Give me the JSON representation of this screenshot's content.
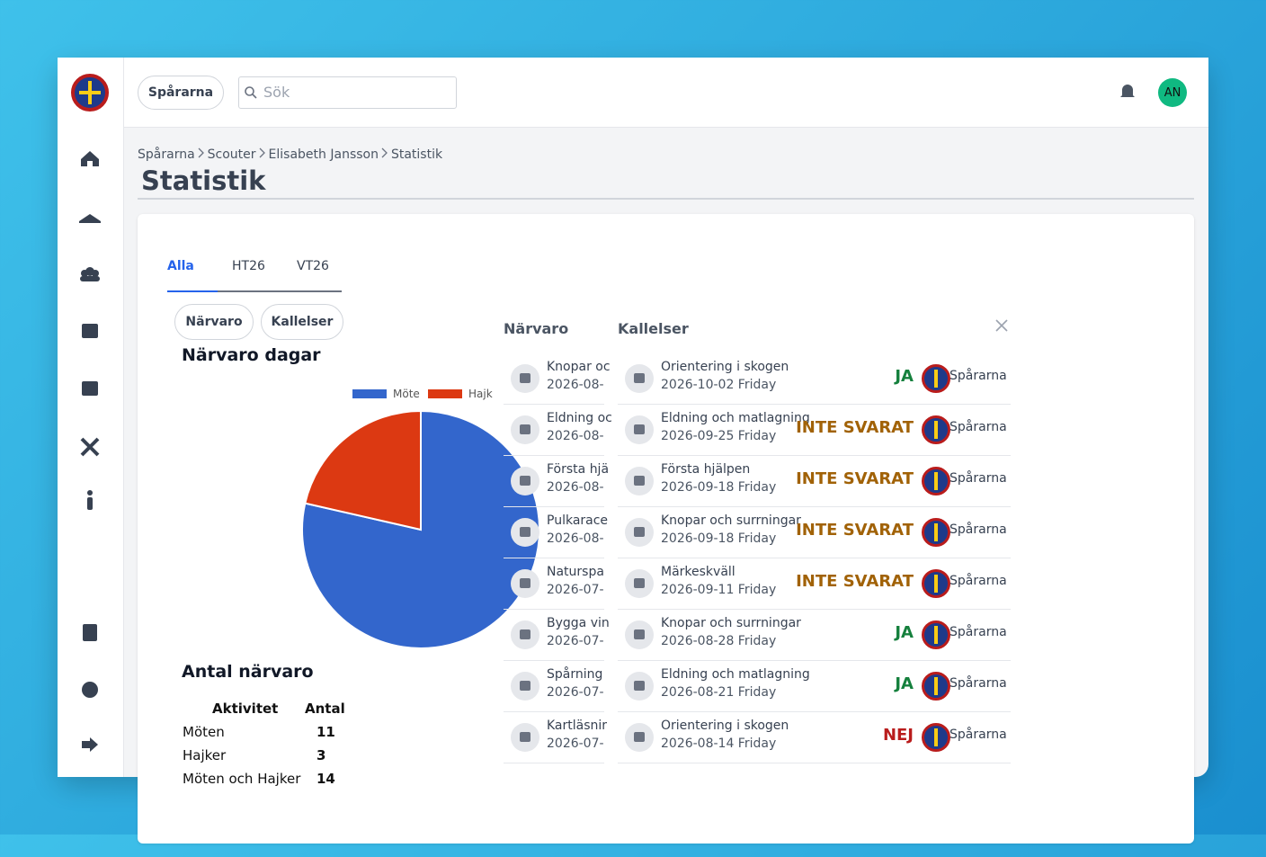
{
  "topbar": {
    "org_button": "Spårarna",
    "search_placeholder": "Sök",
    "avatar": "AN"
  },
  "breadcrumb": [
    "Spårarna",
    "Scouter",
    "Elisabeth Jansson",
    "Statistik"
  ],
  "page_title": "Statistik",
  "tabs": [
    "Alla",
    "HT26",
    "VT26"
  ],
  "filter_buttons": [
    "Närvaro",
    "Kallelser"
  ],
  "attendance_days": {
    "title": "Närvaro dagar",
    "legend": [
      {
        "name": "Möte",
        "color": "#3366cc"
      },
      {
        "name": "Hajk",
        "color": "#dc3912"
      }
    ]
  },
  "attendance_count": {
    "title": "Antal närvaro",
    "header": [
      "Aktivitet",
      "Antal"
    ],
    "rows": [
      [
        "Möten",
        11
      ],
      [
        "Hajker",
        3
      ],
      [
        "Möten och Hajker",
        14
      ]
    ]
  },
  "panel": {
    "tabs": [
      "Närvaro",
      "Kallelser"
    ],
    "narvaro": [
      {
        "title": "Knopar oc",
        "date": "2026-08-"
      },
      {
        "title": "Eldning oc",
        "date": "2026-08-"
      },
      {
        "title": "Första hjä",
        "date": "2026-08-"
      },
      {
        "title": "Pulkarace",
        "date": "2026-08-"
      },
      {
        "title": "Naturspa",
        "date": "2026-07-"
      },
      {
        "title": "Bygga vin",
        "date": "2026-07-"
      },
      {
        "title": "Spårning",
        "date": "2026-07-"
      },
      {
        "title": "Kartläsnir",
        "date": "2026-07-"
      }
    ],
    "kallelser": [
      {
        "title": "Orientering i skogen",
        "date": "2026-10-02 Friday",
        "status": "JA",
        "unit": "Spårarna"
      },
      {
        "title": "Eldning och matlagning",
        "date": "2026-09-25 Friday",
        "status": "INTE SVARAT",
        "unit": "Spårarna"
      },
      {
        "title": "Första hjälpen",
        "date": "2026-09-18 Friday",
        "status": "INTE SVARAT",
        "unit": "Spårarna"
      },
      {
        "title": "Knopar och surrningar",
        "date": "2026-09-18 Friday",
        "status": "INTE SVARAT",
        "unit": "Spårarna"
      },
      {
        "title": "Märkeskväll",
        "date": "2026-09-11 Friday",
        "status": "INTE SVARAT",
        "unit": "Spårarna"
      },
      {
        "title": "Knopar och surrningar",
        "date": "2026-08-28 Friday",
        "status": "JA",
        "unit": "Spårarna"
      },
      {
        "title": "Eldning och matlagning",
        "date": "2026-08-21 Friday",
        "status": "JA",
        "unit": "Spårarna"
      },
      {
        "title": "Orientering i skogen",
        "date": "2026-08-14 Friday",
        "status": "NEJ",
        "unit": "Spårarna"
      }
    ]
  }
}
